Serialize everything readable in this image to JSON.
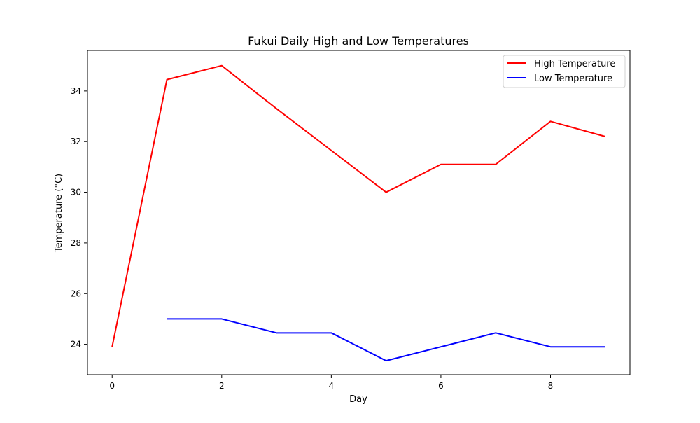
{
  "chart_data": {
    "type": "line",
    "title": "Fukui Daily High and Low Temperatures",
    "xlabel": "Day",
    "ylabel": "Temperature (°C)",
    "xlim": [
      -0.45,
      9.45
    ],
    "ylim": [
      22.8,
      35.6
    ],
    "x_ticks": [
      0,
      2,
      4,
      6,
      8
    ],
    "y_ticks": [
      24,
      26,
      28,
      30,
      32,
      34
    ],
    "grid": false,
    "legend_position": "top-right",
    "series": [
      {
        "name": "High Temperature",
        "color": "#ff0000",
        "x": [
          0,
          1,
          2,
          3,
          4,
          5,
          6,
          7,
          8,
          9
        ],
        "y": [
          23.9,
          34.45,
          35.0,
          33.3,
          31.65,
          30.0,
          31.1,
          31.1,
          32.8,
          32.2
        ]
      },
      {
        "name": "Low Temperature",
        "color": "#0000ff",
        "x": [
          1,
          2,
          3,
          4,
          5,
          6,
          7,
          8,
          9
        ],
        "y": [
          25.0,
          25.0,
          24.45,
          24.45,
          23.35,
          23.9,
          24.45,
          23.9,
          23.9
        ]
      }
    ]
  }
}
